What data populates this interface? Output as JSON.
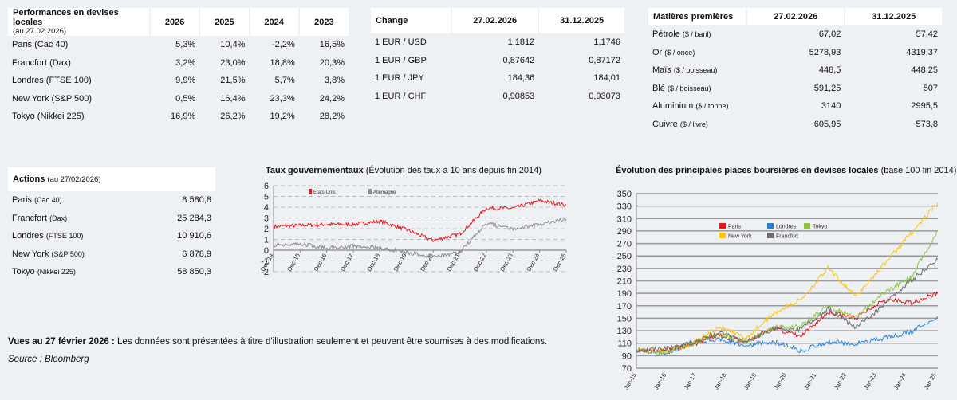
{
  "performances": {
    "title": "Performances en devises locales",
    "subtitle": "(au 27.02.2026)",
    "columns": [
      "2026",
      "2025",
      "2024",
      "2023"
    ],
    "rows": [
      {
        "label": "Paris (Cac 40)",
        "values": [
          "5,3%",
          "10,4%",
          "-2,2%",
          "16,5%"
        ]
      },
      {
        "label": "Francfort (Dax)",
        "values": [
          "3,2%",
          "23,0%",
          "18,8%",
          "20,3%"
        ]
      },
      {
        "label": "Londres (FTSE 100)",
        "values": [
          "9,9%",
          "21,5%",
          "5,7%",
          "3,8%"
        ]
      },
      {
        "label": "New York (S&P   500)",
        "values": [
          "0,5%",
          "16,4%",
          "23,3%",
          "24,2%"
        ]
      },
      {
        "label": "Tokyo (Nikkei 225)",
        "values": [
          "16,9%",
          "26,2%",
          "19,2%",
          "28,2%"
        ]
      }
    ]
  },
  "change": {
    "title": "Change",
    "columns": [
      "27.02.2026",
      "31.12.2025"
    ],
    "rows": [
      {
        "label": "1 EUR / USD",
        "values": [
          "1,1812",
          "1,1746"
        ]
      },
      {
        "label": "1 EUR / GBP",
        "values": [
          "0,87642",
          "0,87172"
        ]
      },
      {
        "label": "1 EUR / JPY",
        "values": [
          "184,36",
          "184,01"
        ]
      },
      {
        "label": "1 EUR / CHF",
        "values": [
          "0,90853",
          "0,93073"
        ]
      }
    ]
  },
  "commodities": {
    "title": "Matières premières",
    "columns": [
      "27.02.2026",
      "31.12.2025"
    ],
    "rows": [
      {
        "label": "Pétrole",
        "unit": "($ / baril)",
        "values": [
          "67,02",
          "57,42"
        ]
      },
      {
        "label": "Or",
        "unit": "($ / once)",
        "values": [
          "5278,93",
          "4319,37"
        ]
      },
      {
        "label": "Maïs",
        "unit": "($ / boisseau)",
        "values": [
          "448,5",
          "448,25"
        ]
      },
      {
        "label": "Blé",
        "unit": "($ / boisseau)",
        "values": [
          "591,25",
          "507"
        ]
      },
      {
        "label": "Aluminium",
        "unit": "($ /   tonne)",
        "values": [
          "3140",
          "2995,5"
        ]
      },
      {
        "label": "Cuivre",
        "unit": "($ / livre)",
        "values": [
          "605,95",
          "573,8"
        ]
      }
    ]
  },
  "actions": {
    "title": "Actions",
    "subtitle": "(au 27/02/2026)",
    "rows": [
      {
        "label": "Paris",
        "unit": "(Cac 40)",
        "value": "8 580,8"
      },
      {
        "label": "Francfort",
        "unit": "(Dax)",
        "value": "25 284,3"
      },
      {
        "label": "Londres",
        "unit": "(FTSE 100)",
        "value": "10 910,6"
      },
      {
        "label": "New York",
        "unit": "(S&P   500)",
        "value": "6 878,9"
      },
      {
        "label": "Tokyo",
        "unit": "(Nikkei 225)",
        "value": "58 850,3"
      }
    ]
  },
  "footer": {
    "note_bold": "Vues au 27 février 2026 :",
    "note_text": " Les données sont présentées à titre d'illustration seulement et peuvent être soumises à des modifications.",
    "source": "Source : Bloomberg"
  },
  "chart_data": [
    {
      "type": "line",
      "title": "Taux gouvernementaux",
      "subtitle": "(Évolution des taux à 10 ans depuis fin 2014)",
      "xlabel": "",
      "ylabel": "",
      "ylim": [
        -2,
        6
      ],
      "yticks": [
        -2,
        -1,
        0,
        1,
        2,
        3,
        4,
        5,
        6
      ],
      "x": [
        "Dec-14",
        "Dec-15",
        "Dec-16",
        "Dec-17",
        "Dec-18",
        "Dec-19",
        "Dec-20",
        "Dec-21",
        "Dec-22",
        "Dec-23",
        "Dec-24",
        "Dec-25"
      ],
      "grid": true,
      "legend": "top-left",
      "series": [
        {
          "name": "Etats-Unis",
          "color": "#e8141b",
          "values": [
            2.2,
            2.3,
            2.4,
            2.4,
            2.7,
            1.9,
            0.9,
            1.5,
            3.9,
            3.9,
            4.6,
            4.2
          ]
        },
        {
          "name": "Allemagne",
          "color": "#8c8c8c",
          "values": [
            0.5,
            0.6,
            0.2,
            0.4,
            0.2,
            -0.2,
            -0.6,
            -0.2,
            2.5,
            2.0,
            2.4,
            2.9
          ]
        }
      ]
    },
    {
      "type": "line",
      "title": "Évolution des principales places boursières en devises locales",
      "subtitle": "(base 100 fin 2014)",
      "xlabel": "",
      "ylabel": "",
      "ylim": [
        70,
        350
      ],
      "yticks": [
        70,
        90,
        110,
        130,
        150,
        170,
        190,
        210,
        230,
        250,
        270,
        290,
        310,
        330,
        350
      ],
      "x": [
        "Jan-15",
        "Jan-16",
        "Jan-17",
        "Jan-18",
        "Jan-19",
        "Jan-20",
        "Jan-21",
        "Jan-22",
        "Jan-23",
        "Jan-24",
        "Jan-25",
        "Dec-25"
      ],
      "grid": true,
      "legend": "top-center",
      "series": [
        {
          "name": "Paris",
          "color": "#e8141b",
          "values": [
            100,
            98,
            107,
            123,
            112,
            135,
            120,
            160,
            150,
            180,
            175,
            190
          ]
        },
        {
          "name": "Londres",
          "color": "#2a7fcf",
          "values": [
            100,
            92,
            110,
            118,
            105,
            113,
            98,
            112,
            110,
            118,
            128,
            153
          ]
        },
        {
          "name": "Tokyo",
          "color": "#8cc63f",
          "values": [
            100,
            95,
            108,
            126,
            112,
            135,
            138,
            170,
            150,
            190,
            215,
            290
          ]
        },
        {
          "name": "New York",
          "color": "#ffc20e",
          "values": [
            100,
            97,
            107,
            136,
            118,
            158,
            180,
            230,
            185,
            235,
            285,
            335
          ]
        },
        {
          "name": "Francfort",
          "color": "#6d6d6d",
          "values": [
            100,
            100,
            110,
            128,
            110,
            134,
            132,
            165,
            135,
            170,
            210,
            245
          ]
        }
      ]
    }
  ]
}
